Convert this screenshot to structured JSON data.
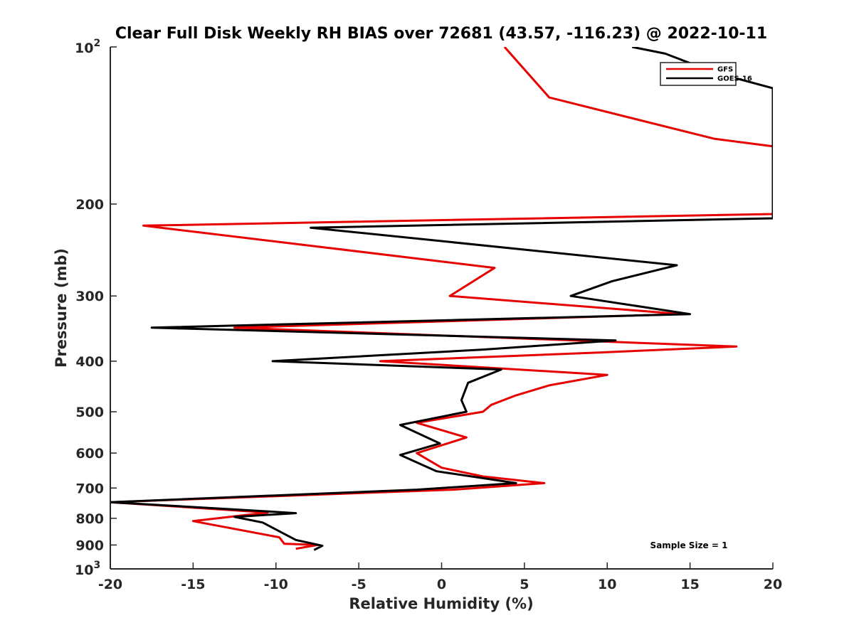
{
  "chart_data": {
    "type": "line",
    "title": "Clear Full Disk Weekly RH BIAS over 72681 (43.57, -116.23) @ 2022-10-11",
    "xlabel": "Relative Humidity (%)",
    "ylabel": "Pressure (mb)",
    "xlim": [
      -20,
      20
    ],
    "ylim": [
      100,
      1000
    ],
    "y_scale": "log",
    "y_reversed": true,
    "grid": false,
    "legend_position": "top-right",
    "x_ticks": [
      "-20",
      "-15",
      "-10",
      "-5",
      "0",
      "5",
      "10",
      "15",
      "20"
    ],
    "y_ticks": [
      {
        "value": 100,
        "base": "10",
        "exp": "2"
      },
      {
        "value": 200,
        "label": "200"
      },
      {
        "value": 300,
        "label": "300"
      },
      {
        "value": 400,
        "label": "400"
      },
      {
        "value": 500,
        "label": "500"
      },
      {
        "value": 600,
        "label": "600"
      },
      {
        "value": 700,
        "label": "700"
      },
      {
        "value": 800,
        "label": "800"
      },
      {
        "value": 900,
        "label": "900"
      },
      {
        "value": 1000,
        "base": "10",
        "exp": "3"
      }
    ],
    "series": [
      {
        "name": "GFS",
        "color": "#e60000",
        "points": [
          [
            3.8,
            100
          ],
          [
            6.5,
            125
          ],
          [
            16.5,
            150
          ],
          [
            20,
            155
          ],
          [
            20,
            209
          ],
          [
            -18,
            220
          ],
          [
            3.2,
            265
          ],
          [
            0.5,
            300
          ],
          [
            14.5,
            325
          ],
          [
            -12.5,
            345
          ],
          [
            17.8,
            375
          ],
          [
            9.5,
            385
          ],
          [
            -3.7,
            400
          ],
          [
            10,
            425
          ],
          [
            6.5,
            445
          ],
          [
            4.5,
            465
          ],
          [
            3.0,
            485
          ],
          [
            2.5,
            500
          ],
          [
            -1.5,
            525
          ],
          [
            1.5,
            560
          ],
          [
            -1.5,
            600
          ],
          [
            0,
            640
          ],
          [
            2.5,
            665
          ],
          [
            6.2,
            685
          ],
          [
            0.7,
            705
          ],
          [
            -20,
            745
          ],
          [
            -10.5,
            780
          ],
          [
            -15,
            810
          ],
          [
            -9.8,
            870
          ],
          [
            -9.5,
            895
          ],
          [
            -7.5,
            900
          ],
          [
            -8.8,
            915
          ]
        ]
      },
      {
        "name": "GOES-16",
        "color": "#000000",
        "points": [
          [
            11.5,
            100
          ],
          [
            13.5,
            103
          ],
          [
            16.5,
            112
          ],
          [
            20,
            120
          ],
          [
            20,
            213
          ],
          [
            -7.9,
            222
          ],
          [
            14.2,
            262
          ],
          [
            10.3,
            281
          ],
          [
            7.8,
            300
          ],
          [
            15,
            325
          ],
          [
            -17.5,
            345
          ],
          [
            10.5,
            365
          ],
          [
            2.5,
            380
          ],
          [
            -10.2,
            400
          ],
          [
            3.6,
            415
          ],
          [
            1.6,
            440
          ],
          [
            1.2,
            475
          ],
          [
            1.5,
            500
          ],
          [
            -2.5,
            530
          ],
          [
            -0.1,
            575
          ],
          [
            -2.5,
            605
          ],
          [
            -0.3,
            650
          ],
          [
            4.5,
            685
          ],
          [
            -1.5,
            705
          ],
          [
            -20,
            745
          ],
          [
            -11.7,
            772
          ],
          [
            -8.8,
            782
          ],
          [
            -12.5,
            795
          ],
          [
            -10.8,
            815
          ],
          [
            -8.8,
            880
          ],
          [
            -7.2,
            903
          ],
          [
            -7.7,
            920
          ]
        ]
      }
    ],
    "annotation": "Sample Size = 1"
  }
}
